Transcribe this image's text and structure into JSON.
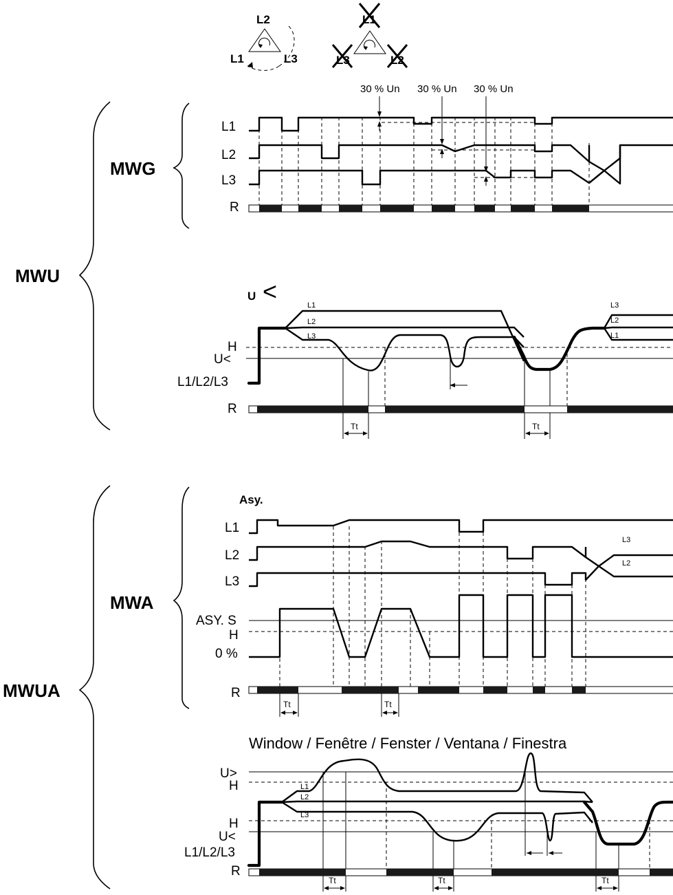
{
  "labels": {
    "mwu": "MWU",
    "mwua": "MWUA",
    "mwg": "MWG",
    "mwa": "MWA",
    "u_under_title": "U",
    "u_under_symbol": "<",
    "asy": "Asy.",
    "window": "Window / Fenêtre / Fenster / Ventana / Finestra",
    "l1": "L1",
    "l2": "L2",
    "l3": "L3",
    "r": "R",
    "h": "H",
    "u_lt": "U<",
    "u_gt": "U>",
    "l123": "L1/L2/L3",
    "asy_s": "ASY. S",
    "zero_pct": "0 %",
    "tt": "Tt",
    "pct30_1": "30 % Un",
    "pct30_2": "30 % Un",
    "pct30_3": "30 % Un"
  },
  "icons": {
    "phase_rotation": "phase-rotation-triangle-icon",
    "phase_loss": "crossed-phase-triangle-icon"
  },
  "colors": {
    "ink": "#000000",
    "relay_on": "#1a1a1a",
    "background": "#ffffff"
  }
}
